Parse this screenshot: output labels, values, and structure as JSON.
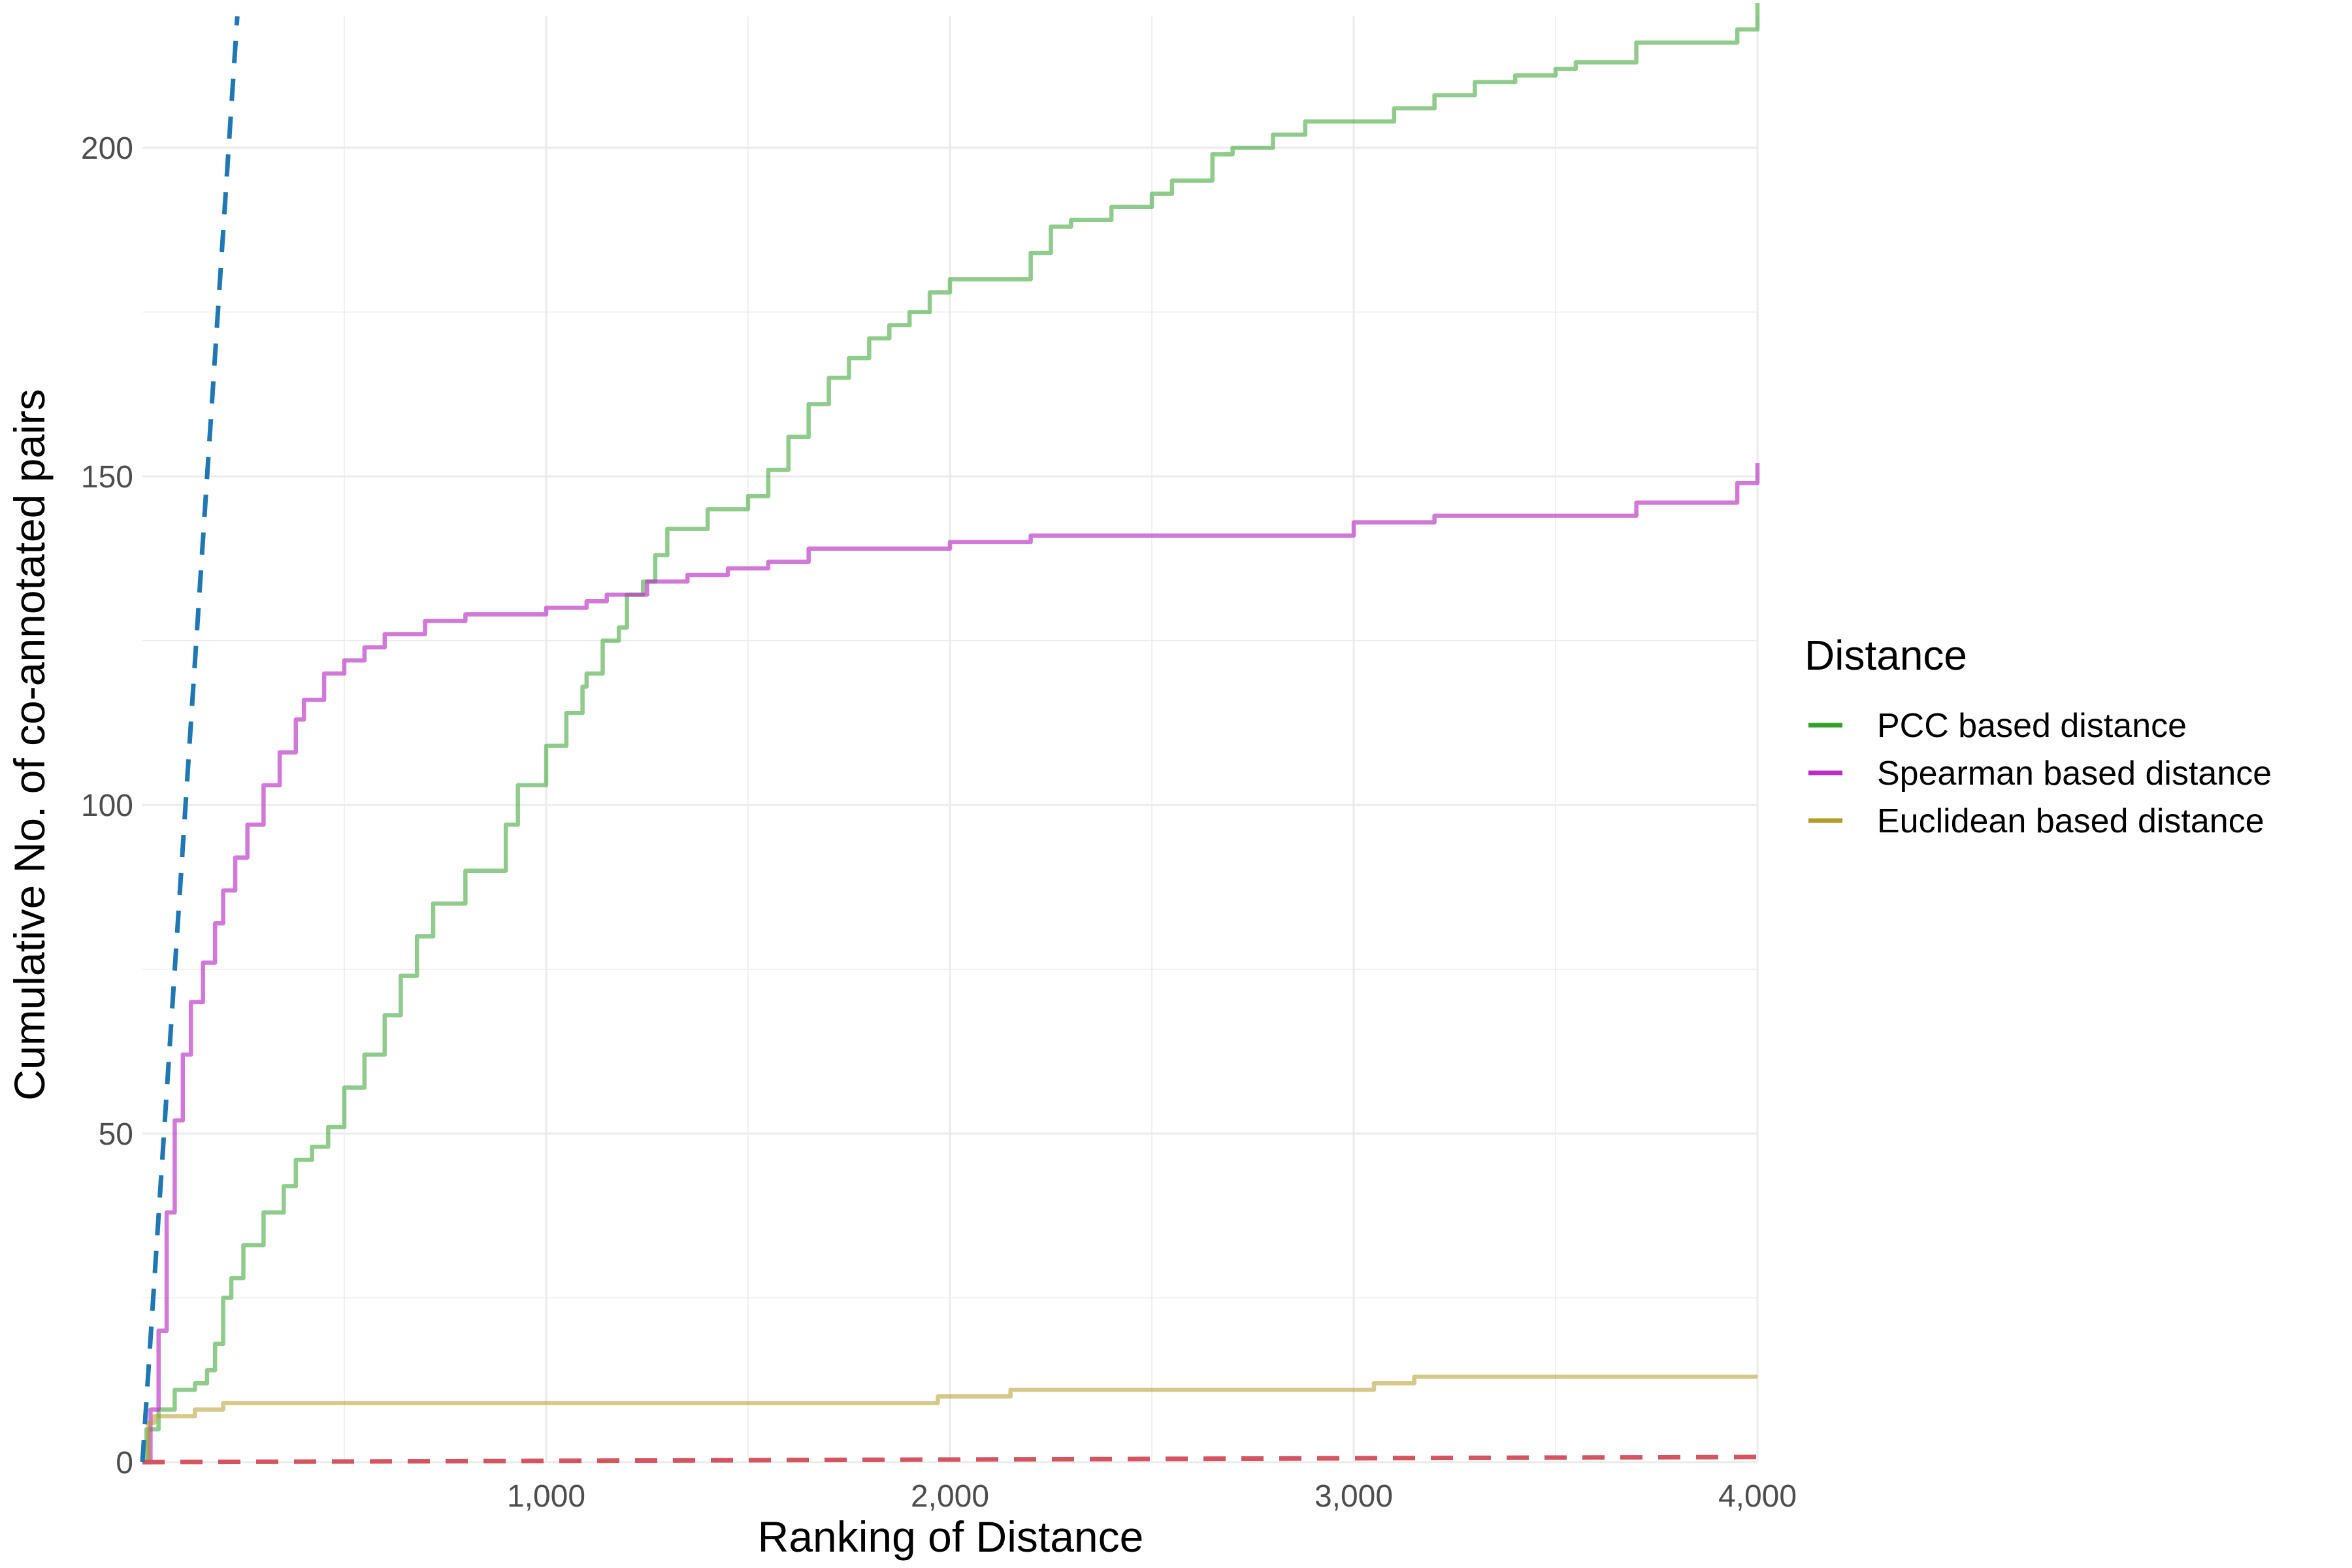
{
  "chart_data": {
    "type": "line",
    "title": "",
    "xlabel": "Ranking of Distance",
    "ylabel": "Cumulative No. of co-annotated pairs",
    "xlim": [
      0,
      4000
    ],
    "ylim": [
      0,
      220
    ],
    "x_ticks": [
      1000,
      2000,
      3000,
      4000
    ],
    "x_tick_labels": [
      "1,000",
      "2,000",
      "3,000",
      "4,000"
    ],
    "y_ticks": [
      0,
      50,
      100,
      150,
      200
    ],
    "y_tick_labels": [
      "0",
      "50",
      "100",
      "150",
      "200"
    ],
    "grid": true,
    "legend": {
      "title": "Distance",
      "placement": "right",
      "entries": [
        "PCC based distance",
        "Spearman based distance",
        "Euclidean based distance"
      ]
    },
    "series": [
      {
        "name": "PCC based distance",
        "color": "#33a02c",
        "opacity": 0.55,
        "step": true,
        "x": [
          0,
          10,
          40,
          80,
          130,
          160,
          180,
          200,
          220,
          250,
          300,
          350,
          380,
          420,
          460,
          500,
          550,
          600,
          640,
          680,
          720,
          800,
          900,
          930,
          1000,
          1050,
          1090,
          1100,
          1140,
          1180,
          1200,
          1240,
          1270,
          1300,
          1400,
          1500,
          1550,
          1600,
          1650,
          1700,
          1750,
          1800,
          1850,
          1900,
          1950,
          2000,
          2050,
          2200,
          2250,
          2300,
          2400,
          2500,
          2550,
          2650,
          2700,
          2800,
          2880,
          3000,
          3100,
          3200,
          3300,
          3400,
          3500,
          3550,
          3700,
          3800,
          3900,
          3950,
          4000
        ],
        "y": [
          0,
          5,
          8,
          11,
          12,
          14,
          18,
          25,
          28,
          33,
          38,
          42,
          46,
          48,
          51,
          57,
          62,
          68,
          74,
          80,
          85,
          90,
          97,
          103,
          109,
          114,
          118,
          120,
          125,
          127,
          132,
          134,
          138,
          142,
          145,
          147,
          151,
          156,
          161,
          165,
          168,
          171,
          173,
          175,
          178,
          180,
          180,
          184,
          188,
          189,
          191,
          193,
          195,
          199,
          200,
          202,
          204,
          204,
          206,
          208,
          210,
          211,
          212,
          213,
          216,
          216,
          216,
          218,
          222
        ]
      },
      {
        "name": "Spearman based distance",
        "color": "#b92fc5",
        "opacity": 0.65,
        "step": true,
        "x": [
          0,
          20,
          40,
          60,
          80,
          100,
          120,
          150,
          180,
          200,
          230,
          260,
          300,
          340,
          380,
          400,
          450,
          500,
          550,
          600,
          700,
          800,
          1000,
          1100,
          1150,
          1250,
          1350,
          1450,
          1550,
          1650,
          2000,
          2200,
          2500,
          2900,
          3000,
          3200,
          3500,
          3700,
          3850,
          3950,
          4000
        ],
        "y": [
          0,
          8,
          20,
          38,
          52,
          62,
          70,
          76,
          82,
          87,
          92,
          97,
          103,
          108,
          113,
          116,
          120,
          122,
          124,
          126,
          128,
          129,
          130,
          131,
          132,
          134,
          135,
          136,
          137,
          139,
          140,
          141,
          141,
          141,
          143,
          144,
          144,
          146,
          146,
          149,
          152
        ]
      },
      {
        "name": "Euclidean based distance",
        "color": "#b29b27",
        "opacity": 0.55,
        "step": true,
        "x": [
          0,
          15,
          30,
          130,
          200,
          1970,
          2150,
          3050,
          3150,
          4000
        ],
        "y": [
          0,
          6,
          7,
          8,
          9,
          10,
          11,
          12,
          13,
          13
        ]
      },
      {
        "name": "",
        "color": "#1f78b4",
        "dashed": true,
        "step": false,
        "x": [
          0,
          235
        ],
        "y": [
          0,
          220
        ]
      },
      {
        "name": "",
        "color": "#d4545f",
        "dashed": true,
        "step": false,
        "x": [
          0,
          4000
        ],
        "y": [
          0,
          0.8
        ]
      }
    ]
  }
}
